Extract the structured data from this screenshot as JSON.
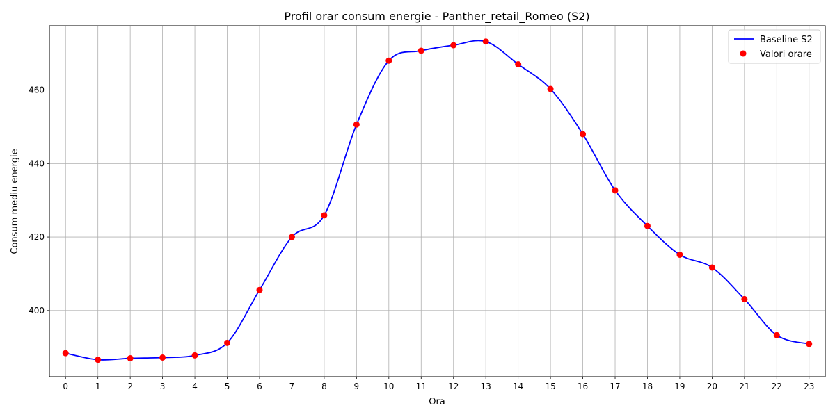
{
  "chart_data": {
    "type": "line",
    "title": "Profil orar consum energie - Panther_retail_Romeo (S2)",
    "xlabel": "Ora",
    "ylabel": "Consum mediu energie",
    "grid": true,
    "legend_position": "top-right",
    "xlim": [
      -0.5,
      23.5
    ],
    "ylim": [
      382.0,
      477.5
    ],
    "x_ticks": [
      0,
      1,
      2,
      3,
      4,
      5,
      6,
      7,
      8,
      9,
      10,
      11,
      12,
      13,
      14,
      15,
      16,
      17,
      18,
      19,
      20,
      21,
      22,
      23
    ],
    "y_ticks": [
      400,
      420,
      440,
      460
    ],
    "x": [
      0,
      1,
      2,
      3,
      4,
      5,
      6,
      7,
      8,
      9,
      10,
      11,
      12,
      13,
      14,
      15,
      16,
      17,
      18,
      19,
      20,
      21,
      22,
      23
    ],
    "series": [
      {
        "name": "Baseline S2",
        "kind": "line",
        "color": "#0000ff",
        "values": [
          388.4,
          386.6,
          387.0,
          387.2,
          387.8,
          391.2,
          405.6,
          420.0,
          425.9,
          450.6,
          468.0,
          470.7,
          472.2,
          473.2,
          467.0,
          460.3,
          448.0,
          432.7,
          423.0,
          415.2,
          411.7,
          403.1,
          393.3,
          390.9
        ]
      },
      {
        "name": "Valori orare",
        "kind": "scatter",
        "color": "#ff0000",
        "values": [
          388.4,
          386.6,
          387.0,
          387.2,
          387.8,
          391.2,
          405.6,
          420.0,
          425.9,
          450.6,
          468.0,
          470.7,
          472.2,
          473.2,
          467.0,
          460.3,
          448.0,
          432.7,
          423.0,
          415.2,
          411.7,
          403.1,
          393.3,
          390.9
        ]
      }
    ]
  }
}
